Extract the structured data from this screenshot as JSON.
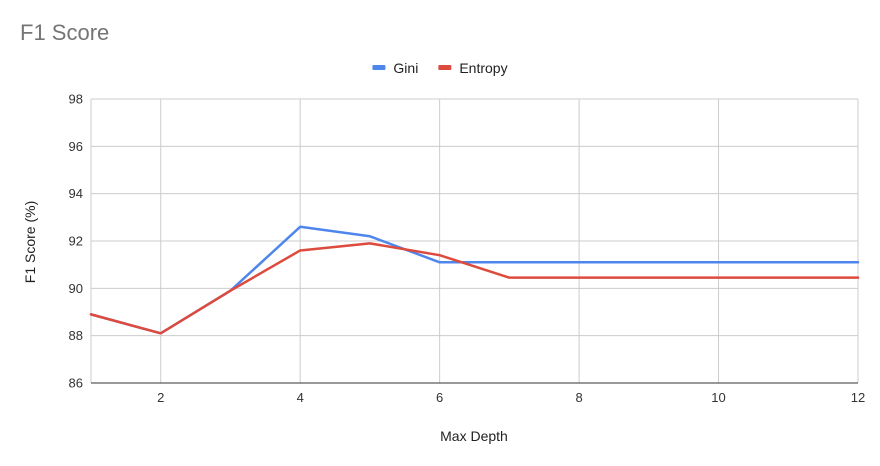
{
  "chart_data": {
    "type": "line",
    "title": "F1 Score",
    "xlabel": "Max Depth",
    "ylabel": "F1 Score (%)",
    "xlim": [
      1,
      12
    ],
    "ylim": [
      86,
      98
    ],
    "x_ticks": [
      2,
      4,
      6,
      8,
      10,
      12
    ],
    "y_ticks": [
      86,
      88,
      90,
      92,
      94,
      96,
      98
    ],
    "grid": true,
    "legend_position": "top",
    "x": [
      1,
      2,
      3,
      4,
      5,
      6,
      7,
      8,
      9,
      10,
      11,
      12
    ],
    "series": [
      {
        "name": "Gini",
        "color": "#4f86ec",
        "values": [
          88.9,
          88.1,
          89.9,
          92.6,
          92.2,
          91.1,
          91.1,
          91.1,
          91.1,
          91.1,
          91.1,
          91.1
        ]
      },
      {
        "name": "Entropy",
        "color": "#dd4b3e",
        "values": [
          88.9,
          88.1,
          89.9,
          91.6,
          91.9,
          91.4,
          90.45,
          90.45,
          90.45,
          90.45,
          90.45,
          90.45
        ]
      }
    ]
  }
}
